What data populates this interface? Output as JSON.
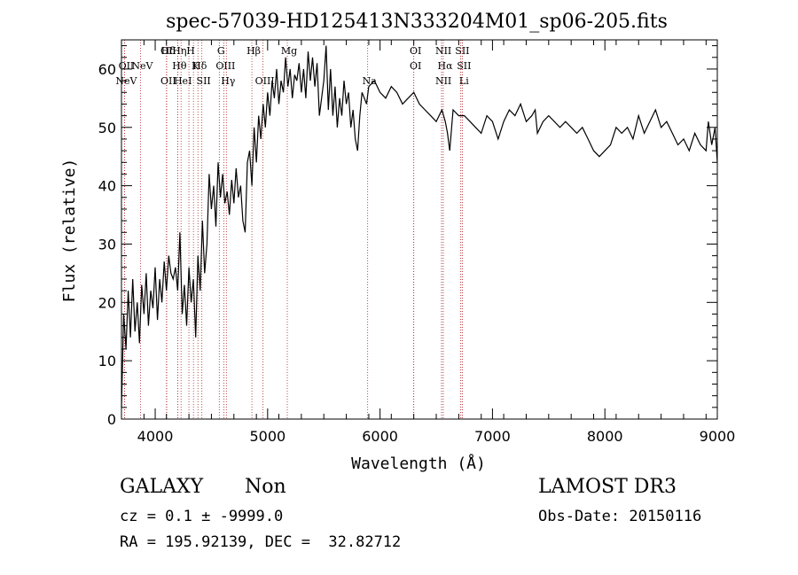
{
  "chart_data": {
    "type": "line",
    "title": "spec-57039-HD125413N333204M01_sp06-205.fits",
    "xlabel": "Wavelength (Å)",
    "ylabel": "Flux (relative)",
    "xlim": [
      3700,
      9000
    ],
    "ylim": [
      0,
      65
    ],
    "xticks": [
      "4000",
      "5000",
      "6000",
      "7000",
      "8000",
      "9000"
    ],
    "yticks": [
      "0",
      "10",
      "20",
      "30",
      "40",
      "50",
      "60"
    ],
    "grid": false,
    "series": [
      {
        "x": [
          3700,
          3720,
          3740,
          3760,
          3780,
          3800,
          3820,
          3840,
          3860,
          3880,
          3900,
          3920,
          3940,
          3960,
          3980,
          4000,
          4020,
          4040,
          4060,
          4080,
          4100,
          4120,
          4140,
          4160,
          4180,
          4200,
          4220,
          4240,
          4260,
          4280,
          4300,
          4320,
          4340,
          4360,
          4380,
          4400,
          4420,
          4440,
          4460,
          4480,
          4500,
          4520,
          4540,
          4560,
          4580,
          4600,
          4620,
          4640,
          4660,
          4680,
          4700,
          4720,
          4740,
          4760,
          4780,
          4800,
          4820,
          4840,
          4860,
          4880,
          4900,
          4920,
          4940,
          4960,
          4980,
          5000,
          5020,
          5040,
          5060,
          5080,
          5100,
          5120,
          5140,
          5160,
          5180,
          5200,
          5220,
          5240,
          5260,
          5280,
          5300,
          5320,
          5340,
          5360,
          5380,
          5400,
          5420,
          5440,
          5460,
          5480,
          5500,
          5520,
          5540,
          5560,
          5580,
          5600,
          5620,
          5640,
          5660,
          5680,
          5700,
          5720,
          5740,
          5760,
          5780,
          5800,
          5820,
          5840,
          5860,
          5880,
          5900,
          5950,
          6000,
          6050,
          6100,
          6150,
          6200,
          6250,
          6300,
          6350,
          6400,
          6450,
          6500,
          6550,
          6580,
          6600,
          6620,
          6650,
          6700,
          6750,
          6800,
          6850,
          6900,
          6950,
          7000,
          7050,
          7100,
          7150,
          7200,
          7250,
          7300,
          7350,
          7380,
          7400,
          7450,
          7500,
          7550,
          7600,
          7650,
          7700,
          7750,
          7800,
          7850,
          7900,
          7950,
          8000,
          8050,
          8100,
          8150,
          8200,
          8250,
          8300,
          8350,
          8400,
          8450,
          8500,
          8550,
          8600,
          8650,
          8700,
          8750,
          8800,
          8850,
          8900,
          8920,
          8950,
          8980,
          9000
        ],
        "y": [
          2,
          18,
          12,
          22,
          14,
          24,
          15,
          20,
          13,
          23,
          18,
          25,
          16,
          22,
          19,
          26,
          17,
          24,
          20,
          27,
          22,
          28,
          25,
          24,
          26,
          22,
          32,
          18,
          23,
          16,
          26,
          20,
          24,
          14,
          28,
          22,
          34,
          25,
          30,
          42,
          36,
          40,
          33,
          44,
          38,
          42,
          37,
          39,
          35,
          41,
          37,
          43,
          38,
          40,
          34,
          32,
          44,
          46,
          40,
          50,
          44,
          52,
          48,
          54,
          50,
          56,
          52,
          58,
          55,
          60,
          54,
          58,
          56,
          62,
          57,
          60,
          55,
          59,
          58,
          61,
          56,
          60,
          55,
          63,
          58,
          62,
          57,
          61,
          52,
          55,
          58,
          64,
          53,
          60,
          52,
          57,
          50,
          55,
          52,
          58,
          54,
          56,
          50,
          53,
          48,
          46,
          52,
          56,
          55,
          54,
          57,
          58,
          56,
          55,
          57,
          56,
          54,
          55,
          56,
          54,
          53,
          52,
          51,
          53,
          51,
          49,
          46,
          53,
          52,
          52,
          51,
          50,
          49,
          52,
          51,
          48,
          51,
          53,
          52,
          54,
          51,
          52,
          53,
          49,
          51,
          52,
          51,
          50,
          51,
          50,
          49,
          50,
          48,
          46,
          45,
          46,
          47,
          50,
          49,
          50,
          48,
          52,
          49,
          51,
          53,
          50,
          51,
          49,
          47,
          48,
          46,
          49,
          47,
          46,
          51,
          47,
          50,
          44
        ]
      }
    ],
    "lines": [
      {
        "x": 3727,
        "label": "OII",
        "row": 1
      },
      {
        "x": 3727,
        "label": "NeV",
        "row": 2
      },
      {
        "x": 3869,
        "label": "NeV",
        "row": 1
      },
      {
        "x": 4101,
        "label": "OII",
        "row": 2
      },
      {
        "x": 4101,
        "label": "OII",
        "row": 0
      },
      {
        "x": 4101,
        "label": "Hδ",
        "row": 0
      },
      {
        "x": 4200,
        "label": "Hη",
        "row": 0
      },
      {
        "x": 4200,
        "label": "Hθ",
        "row": 1
      },
      {
        "x": 4230,
        "label": "HeI",
        "row": 2
      },
      {
        "x": 4300,
        "label": "H",
        "row": 0
      },
      {
        "x": 4340,
        "label": "K",
        "row": 1
      },
      {
        "x": 4380,
        "label": "Hδ",
        "row": 1
      },
      {
        "x": 4415,
        "label": "SII",
        "row": 2
      },
      {
        "x": 4570,
        "label": "G",
        "row": 0
      },
      {
        "x": 4610,
        "label": "OIII",
        "row": 1
      },
      {
        "x": 4633,
        "label": "Hγ",
        "row": 2
      },
      {
        "x": 4860,
        "label": "Hβ",
        "row": 0
      },
      {
        "x": 4959,
        "label": "OIII",
        "row": 2
      },
      {
        "x": 5175,
        "label": "Mg",
        "row": 0
      },
      {
        "x": 5890,
        "label": "Na",
        "row": 2
      },
      {
        "x": 6300,
        "label": "OI",
        "row": 1
      },
      {
        "x": 6300,
        "label": "OI",
        "row": 0
      },
      {
        "x": 6548,
        "label": "NII",
        "row": 0
      },
      {
        "x": 6548,
        "label": "NII",
        "row": 2
      },
      {
        "x": 6563,
        "label": "Hα",
        "row": 1
      },
      {
        "x": 6716,
        "label": "SII",
        "row": 0
      },
      {
        "x": 6731,
        "label": "SII",
        "row": 1
      },
      {
        "x": 6731,
        "label": "Li",
        "row": 2
      }
    ]
  },
  "info": {
    "object_class": "GALAXY",
    "subclass": "Non",
    "survey": "LAMOST DR3",
    "cz": "cz = 0.1 ± -9999.0",
    "obs_date": "Obs-Date: 20150116",
    "coords": "RA = 195.92139, DEC =  32.82712"
  }
}
